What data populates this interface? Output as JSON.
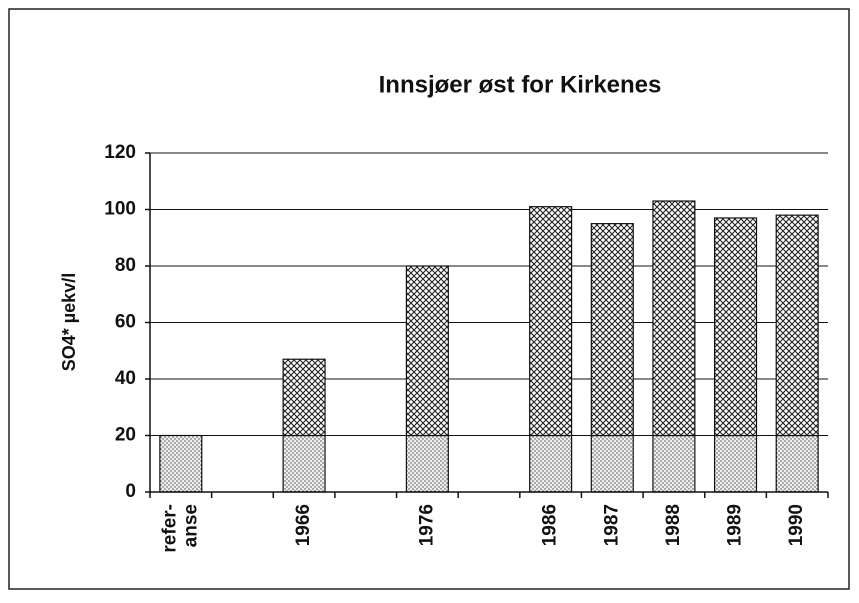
{
  "chart_data": {
    "type": "stacked-bar",
    "title": "Innsjøer øst for Kirkenes",
    "y_label": "SO4* µekv/l",
    "categories": [
      "refer-\nanse",
      null,
      "1966",
      null,
      "1976",
      null,
      "1986",
      "1987",
      "1988",
      "1989",
      "1990"
    ],
    "series": [
      {
        "color": "#d8d8d8",
        "pattern": "dots",
        "values": [
          20,
          null,
          20,
          null,
          20,
          null,
          20,
          20,
          20,
          20,
          20
        ]
      },
      {
        "color": "#e8e8e8",
        "pattern": "crosshatch",
        "values": [
          null,
          null,
          27,
          null,
          60,
          null,
          81,
          75,
          83,
          77,
          78
        ]
      }
    ],
    "ylim": [
      0,
      120
    ],
    "yticks": [
      0,
      20,
      40,
      60,
      80,
      100,
      120
    ],
    "grid": true
  }
}
